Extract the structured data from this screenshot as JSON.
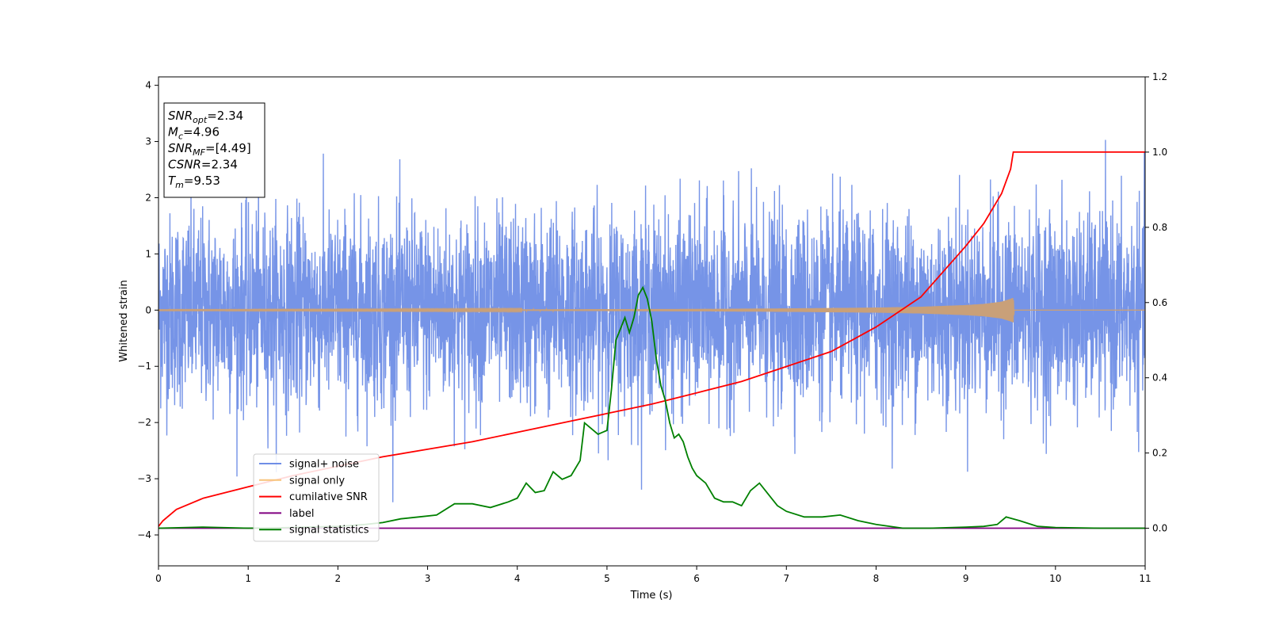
{
  "chart_data": {
    "type": "line",
    "xlabel": "Time (s)",
    "ylabel": "Whitened strain",
    "xlim": [
      0,
      11
    ],
    "ylim": [
      -4.55,
      4.15
    ],
    "y2lim": [
      -0.1,
      1.2
    ],
    "x_ticks": [
      0,
      1,
      2,
      3,
      4,
      5,
      6,
      7,
      8,
      9,
      10,
      11
    ],
    "y_ticks": [
      -4,
      -3,
      -2,
      -1,
      0,
      1,
      2,
      3,
      4
    ],
    "y2_ticks": [
      0.0,
      0.2,
      0.4,
      0.6,
      0.8,
      1.0,
      1.2
    ],
    "grid": false,
    "legend_position": "lower-left",
    "annotation": {
      "lines": [
        {
          "base": "SNR",
          "sub": "opt",
          "value": "=2.34"
        },
        {
          "base": "M",
          "sub": "c",
          "value": "=4.96"
        },
        {
          "base": "SNR",
          "sub": "MF",
          "value": "=[4.49]"
        },
        {
          "base": "CSNR",
          "sub": "",
          "value": "=2.34"
        },
        {
          "base": "T",
          "sub": "m",
          "value": "=9.53"
        }
      ]
    },
    "series": [
      {
        "name": "signal+ noise",
        "color": "#6f8ee6",
        "axis": "left",
        "description": "noisy whitened strain, roughly within ±2 with spikes up to ±3.7",
        "envelope": {
          "x_start": 0,
          "x_end": 11,
          "step": 0.0025,
          "sigma": 0.85,
          "max_abs": 3.7
        }
      },
      {
        "name": "signal only",
        "color": "#f7c37a",
        "axis": "left",
        "x": [
          0,
          2,
          4,
          6,
          7,
          8,
          8.5,
          9,
          9.2,
          9.4,
          9.5,
          9.53,
          9.54,
          11
        ],
        "amplitude": [
          0.005,
          0.008,
          0.012,
          0.02,
          0.03,
          0.045,
          0.06,
          0.09,
          0.11,
          0.15,
          0.2,
          0.22,
          0,
          0
        ]
      },
      {
        "name": "cumilative SNR",
        "color": "#ff0000",
        "axis": "right",
        "x": [
          0,
          0.05,
          0.2,
          0.5,
          1,
          1.5,
          2,
          2.5,
          3,
          3.5,
          4,
          4.5,
          5,
          5.5,
          6,
          6.5,
          7,
          7.5,
          8,
          8.5,
          9,
          9.2,
          9.4,
          9.5,
          9.53,
          11
        ],
        "y": [
          0.005,
          0.02,
          0.05,
          0.08,
          0.11,
          0.14,
          0.165,
          0.19,
          0.21,
          0.23,
          0.255,
          0.28,
          0.305,
          0.33,
          0.36,
          0.39,
          0.43,
          0.47,
          0.535,
          0.615,
          0.75,
          0.81,
          0.89,
          0.955,
          1.0,
          1.0
        ]
      },
      {
        "name": "label",
        "color": "#800080",
        "axis": "right",
        "x": [
          0,
          11
        ],
        "y": [
          0,
          0
        ]
      },
      {
        "name": "signal statistics",
        "color": "#008000",
        "axis": "right",
        "x": [
          0,
          0.5,
          1,
          1.5,
          2,
          2.3,
          2.5,
          2.7,
          2.9,
          3.1,
          3.3,
          3.5,
          3.7,
          3.9,
          4.0,
          4.1,
          4.2,
          4.3,
          4.4,
          4.5,
          4.6,
          4.7,
          4.75,
          4.8,
          4.9,
          5.0,
          5.05,
          5.1,
          5.15,
          5.2,
          5.25,
          5.3,
          5.35,
          5.4,
          5.45,
          5.5,
          5.55,
          5.6,
          5.65,
          5.7,
          5.75,
          5.8,
          5.85,
          5.9,
          5.95,
          6.0,
          6.1,
          6.2,
          6.3,
          6.4,
          6.5,
          6.6,
          6.7,
          6.8,
          6.9,
          7.0,
          7.2,
          7.4,
          7.6,
          7.8,
          8.0,
          8.3,
          8.6,
          9.0,
          9.2,
          9.35,
          9.45,
          9.6,
          9.8,
          10.0,
          10.5,
          11.0
        ],
        "y": [
          0.0,
          0.003,
          0.0,
          0.002,
          0.005,
          0.01,
          0.015,
          0.025,
          0.03,
          0.035,
          0.065,
          0.065,
          0.055,
          0.07,
          0.08,
          0.12,
          0.095,
          0.1,
          0.15,
          0.13,
          0.14,
          0.18,
          0.28,
          0.27,
          0.25,
          0.26,
          0.37,
          0.5,
          0.53,
          0.56,
          0.52,
          0.56,
          0.62,
          0.64,
          0.61,
          0.55,
          0.45,
          0.38,
          0.34,
          0.28,
          0.24,
          0.25,
          0.23,
          0.19,
          0.16,
          0.14,
          0.12,
          0.08,
          0.07,
          0.07,
          0.06,
          0.1,
          0.12,
          0.09,
          0.06,
          0.045,
          0.03,
          0.03,
          0.035,
          0.02,
          0.01,
          0.0,
          0.0,
          0.003,
          0.005,
          0.01,
          0.03,
          0.02,
          0.005,
          0.002,
          0.0,
          0.0
        ]
      }
    ]
  }
}
